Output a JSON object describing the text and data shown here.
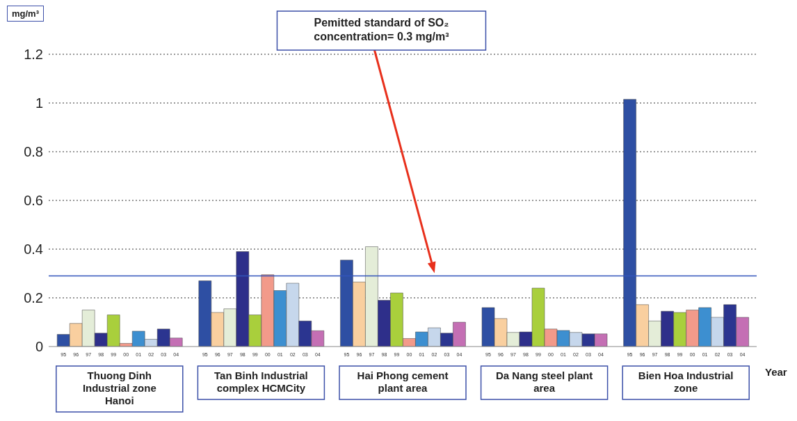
{
  "chart_data": {
    "type": "bar",
    "ylabel": "mg/m³",
    "xlabel": "Year",
    "categories": [
      "Thuong Dinh Industrial zone Hanoi",
      "Tan Binh Industrial complex HCMCity",
      "Hai Phong cement plant area",
      "Da Nang steel plant area",
      "Bien Hoa Industrial zone"
    ],
    "series": [
      {
        "name": "95",
        "color": "#2e4fa3",
        "values": [
          0.05,
          0.27,
          0.355,
          0.16,
          1.015
        ]
      },
      {
        "name": "96",
        "color": "#f9cf9f",
        "values": [
          0.095,
          0.14,
          0.265,
          0.115,
          0.172
        ]
      },
      {
        "name": "97",
        "color": "#e4edd8",
        "values": [
          0.15,
          0.155,
          0.41,
          0.058,
          0.105
        ]
      },
      {
        "name": "98",
        "color": "#2e2f8a",
        "values": [
          0.055,
          0.39,
          0.19,
          0.06,
          0.145
        ]
      },
      {
        "name": "99",
        "color": "#a9cf3c",
        "values": [
          0.13,
          0.13,
          0.22,
          0.24,
          0.14
        ]
      },
      {
        "name": "00",
        "color": "#f29a8a",
        "values": [
          0.013,
          0.295,
          0.033,
          0.072,
          0.15
        ]
      },
      {
        "name": "01",
        "color": "#3d8fd0",
        "values": [
          0.063,
          0.23,
          0.06,
          0.066,
          0.16
        ]
      },
      {
        "name": "02",
        "color": "#c6d7ec",
        "values": [
          0.03,
          0.26,
          0.077,
          0.058,
          0.12
        ]
      },
      {
        "name": "03",
        "color": "#2b3590",
        "values": [
          0.072,
          0.105,
          0.055,
          0.052,
          0.172
        ]
      },
      {
        "name": "04",
        "color": "#c46fb4",
        "values": [
          0.035,
          0.065,
          0.1,
          0.052,
          0.12
        ]
      }
    ],
    "ylim": [
      0,
      1.2
    ],
    "yticks": [
      0,
      0.2,
      0.4,
      0.6,
      0.8,
      1,
      1.2
    ],
    "grid": "y",
    "legend": false,
    "annotations": [
      "Pemitted standard of SO₂ concentration= 0.3 mg/m³"
    ],
    "ref_lines": [
      {
        "axis": "y",
        "value": 0.29,
        "color": "#3355bb"
      }
    ]
  }
}
